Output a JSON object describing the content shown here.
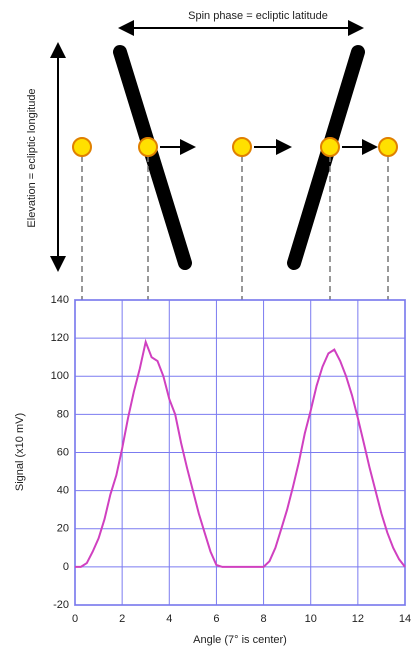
{
  "diagram": {
    "spin_label": "Spin phase = ecliptic latitude",
    "elevation_label": "Elevation = ecliptic longitude"
  },
  "chart_data": {
    "type": "line",
    "xlabel": "Angle (7° is center)",
    "ylabel": "Signal (x10 mV)",
    "xlim": [
      0,
      14
    ],
    "ylim": [
      -20,
      140
    ],
    "xticks": [
      0,
      2,
      4,
      6,
      8,
      10,
      12,
      14
    ],
    "yticks": [
      -20,
      0,
      20,
      40,
      60,
      80,
      100,
      120,
      140
    ],
    "grid": true,
    "series": [
      {
        "color": "#d040c0",
        "x": [
          0,
          0.25,
          0.5,
          0.75,
          1,
          1.25,
          1.5,
          1.75,
          2,
          2.25,
          2.5,
          2.75,
          3,
          3.25,
          3.5,
          3.75,
          4,
          4.25,
          4.5,
          4.75,
          5,
          5.25,
          5.5,
          5.75,
          6,
          6.25,
          6.5,
          6.75,
          7,
          7.25,
          7.5,
          7.75,
          8,
          8.25,
          8.5,
          8.75,
          9,
          9.25,
          9.5,
          9.75,
          10,
          10.25,
          10.5,
          10.75,
          11,
          11.25,
          11.5,
          11.75,
          12,
          12.25,
          12.5,
          12.75,
          13,
          13.25,
          13.5,
          13.75,
          14
        ],
        "values": [
          0,
          0,
          2,
          8,
          15,
          25,
          38,
          48,
          62,
          78,
          92,
          104,
          118,
          110,
          108,
          100,
          88,
          80,
          65,
          52,
          40,
          28,
          18,
          8,
          1,
          0,
          0,
          0,
          0,
          0,
          0,
          0,
          0,
          3,
          10,
          20,
          30,
          42,
          55,
          70,
          82,
          95,
          105,
          112,
          114,
          108,
          100,
          90,
          78,
          65,
          52,
          40,
          28,
          18,
          10,
          4,
          0
        ]
      }
    ]
  }
}
